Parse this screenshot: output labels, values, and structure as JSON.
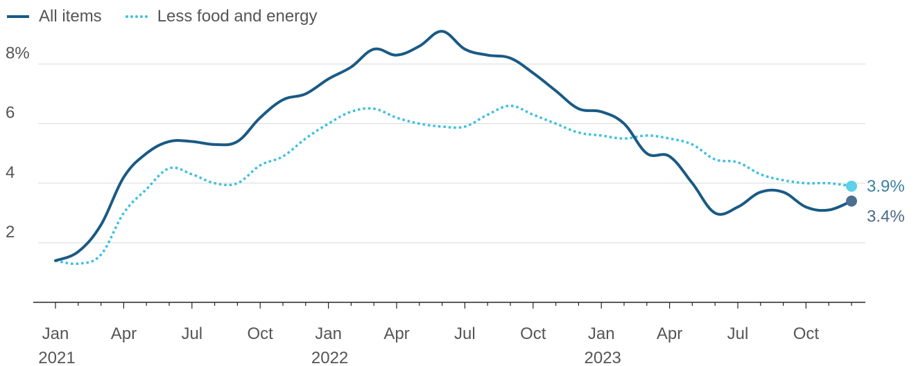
{
  "chart_data": {
    "type": "line",
    "title": "",
    "xlabel": "",
    "ylabel": "",
    "ylim": [
      0,
      9.5
    ],
    "x": [
      "2021-01",
      "2021-02",
      "2021-03",
      "2021-04",
      "2021-05",
      "2021-06",
      "2021-07",
      "2021-08",
      "2021-09",
      "2021-10",
      "2021-11",
      "2021-12",
      "2022-01",
      "2022-02",
      "2022-03",
      "2022-04",
      "2022-05",
      "2022-06",
      "2022-07",
      "2022-08",
      "2022-09",
      "2022-10",
      "2022-11",
      "2022-12",
      "2023-01",
      "2023-02",
      "2023-03",
      "2023-04",
      "2023-05",
      "2023-06",
      "2023-07",
      "2023-08",
      "2023-09",
      "2023-10",
      "2023-11",
      "2023-12"
    ],
    "y_ticks": [
      {
        "value": 2,
        "label": "2"
      },
      {
        "value": 4,
        "label": "4"
      },
      {
        "value": 6,
        "label": "6"
      },
      {
        "value": 8,
        "label": "8%"
      }
    ],
    "x_ticks": [
      {
        "x": "2021-01",
        "label": "Jan",
        "year": "2021"
      },
      {
        "x": "2021-04",
        "label": "Apr",
        "year": ""
      },
      {
        "x": "2021-07",
        "label": "Jul",
        "year": ""
      },
      {
        "x": "2021-10",
        "label": "Oct",
        "year": ""
      },
      {
        "x": "2022-01",
        "label": "Jan",
        "year": "2022"
      },
      {
        "x": "2022-04",
        "label": "Apr",
        "year": ""
      },
      {
        "x": "2022-07",
        "label": "Jul",
        "year": ""
      },
      {
        "x": "2022-10",
        "label": "Oct",
        "year": ""
      },
      {
        "x": "2023-01",
        "label": "Jan",
        "year": "2023"
      },
      {
        "x": "2023-04",
        "label": "Apr",
        "year": ""
      },
      {
        "x": "2023-07",
        "label": "Jul",
        "year": ""
      },
      {
        "x": "2023-10",
        "label": "Oct",
        "year": ""
      }
    ],
    "grid": true,
    "legend_position": "top-left",
    "series": [
      {
        "name": "All items",
        "color": "#1a5a85",
        "style": "solid",
        "values": [
          1.4,
          1.7,
          2.6,
          4.2,
          5.0,
          5.4,
          5.4,
          5.3,
          5.4,
          6.2,
          6.8,
          7.0,
          7.5,
          7.9,
          8.5,
          8.3,
          8.6,
          9.1,
          8.5,
          8.3,
          8.2,
          7.7,
          7.1,
          6.5,
          6.4,
          6.0,
          5.0,
          4.9,
          4.0,
          3.0,
          3.2,
          3.7,
          3.7,
          3.2,
          3.1,
          3.4
        ],
        "end_label": "3.4%"
      },
      {
        "name": "Less food and energy",
        "color": "#3cc0de",
        "style": "dotted",
        "values": [
          1.4,
          1.3,
          1.6,
          3.0,
          3.8,
          4.5,
          4.3,
          4.0,
          4.0,
          4.6,
          4.9,
          5.5,
          6.0,
          6.4,
          6.5,
          6.2,
          6.0,
          5.9,
          5.9,
          6.3,
          6.6,
          6.3,
          6.0,
          5.7,
          5.6,
          5.5,
          5.6,
          5.5,
          5.3,
          4.8,
          4.7,
          4.3,
          4.1,
          4.0,
          4.0,
          3.9
        ],
        "end_label": "3.9%"
      }
    ]
  }
}
